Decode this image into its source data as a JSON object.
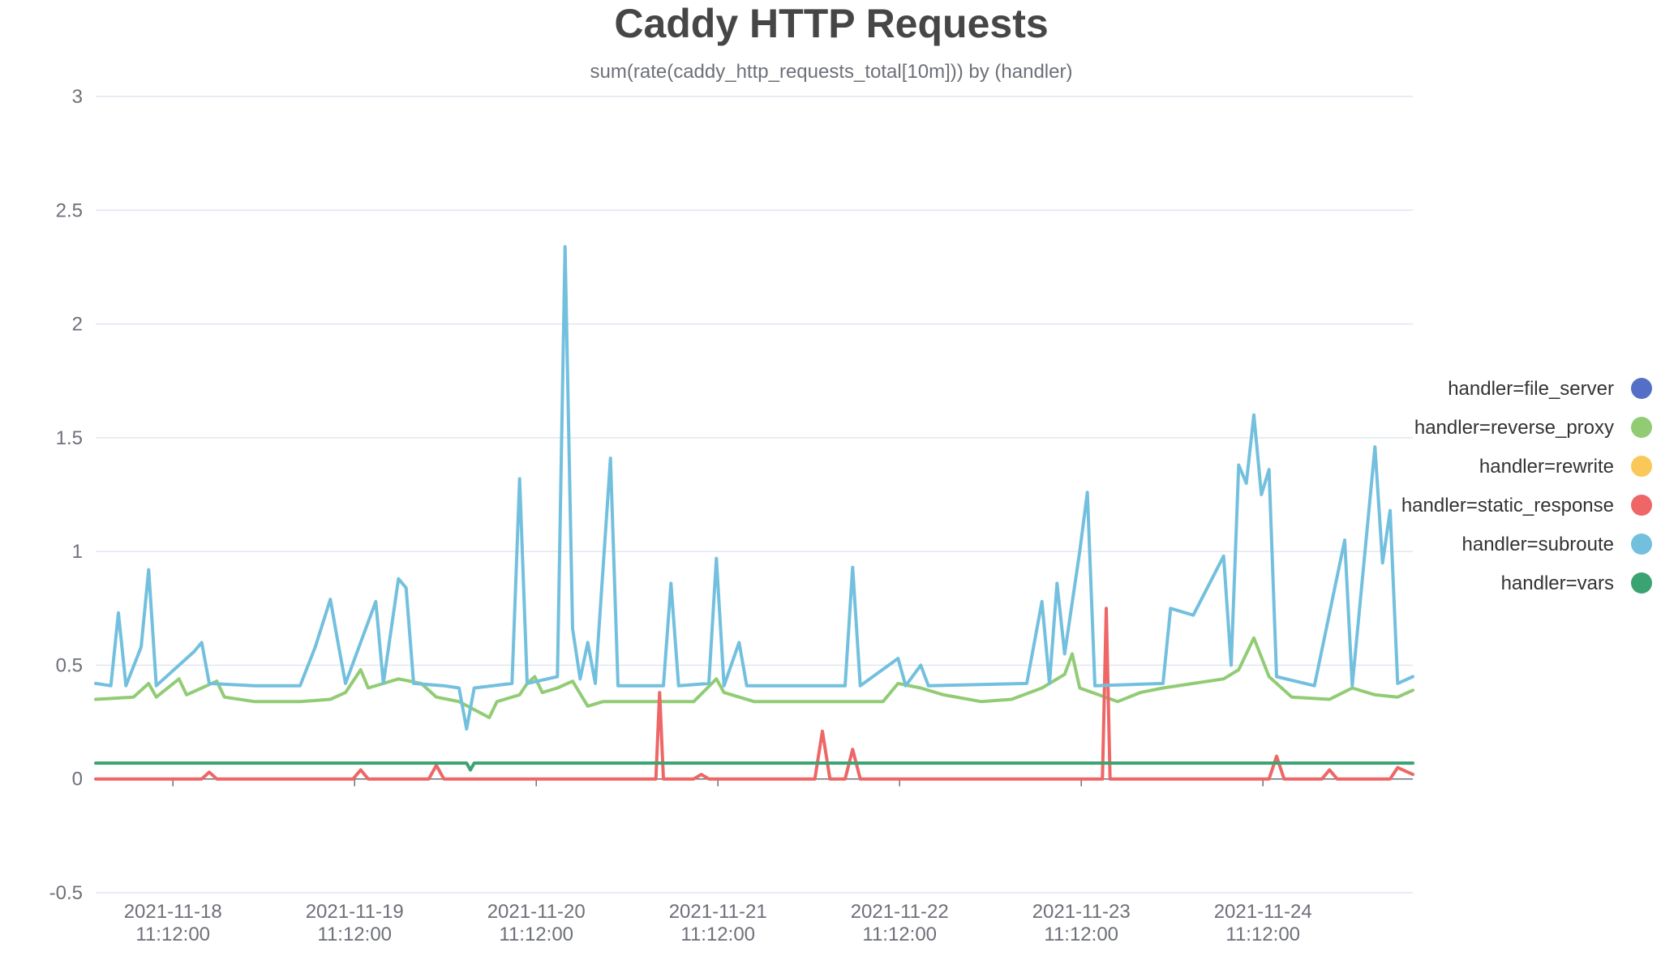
{
  "chart_data": {
    "type": "line",
    "title": "Caddy HTTP Requests",
    "subtitle": "sum(rate(caddy_http_requests_total[10m])) by (handler)",
    "xlabel": "",
    "ylabel": "",
    "ylim": [
      -0.5,
      3
    ],
    "yticks": [
      "3",
      "2.5",
      "2",
      "1.5",
      "1",
      "0.5",
      "0",
      "-0.5"
    ],
    "ytick_values": [
      3,
      2.5,
      2,
      1.5,
      1,
      0.5,
      0,
      -0.5
    ],
    "xlim": [
      "2021-11-18 01:00",
      "2021-11-25 07:00"
    ],
    "xticks": [
      {
        "date": "2021-11-18",
        "time": "11:12:00"
      },
      {
        "date": "2021-11-19",
        "time": "11:12:00"
      },
      {
        "date": "2021-11-20",
        "time": "11:12:00"
      },
      {
        "date": "2021-11-21",
        "time": "11:12:00"
      },
      {
        "date": "2021-11-22",
        "time": "11:12:00"
      },
      {
        "date": "2021-11-23",
        "time": "11:12:00"
      },
      {
        "date": "2021-11-24",
        "time": "11:12:00"
      }
    ],
    "grid": true,
    "legend_position": "right",
    "series": [
      {
        "name": "handler=file_server",
        "color": "#5470c6",
        "points": []
      },
      {
        "name": "handler=reverse_proxy",
        "color": "#91cc75",
        "points": [
          [
            "2021-11-18 01:00",
            0.35
          ],
          [
            "2021-11-18 06:00",
            0.36
          ],
          [
            "2021-11-18 08:00",
            0.42
          ],
          [
            "2021-11-18 09:00",
            0.36
          ],
          [
            "2021-11-18 12:00",
            0.44
          ],
          [
            "2021-11-18 13:00",
            0.37
          ],
          [
            "2021-11-18 15:00",
            0.4
          ],
          [
            "2021-11-18 17:00",
            0.43
          ],
          [
            "2021-11-18 18:00",
            0.36
          ],
          [
            "2021-11-18 22:00",
            0.34
          ],
          [
            "2021-11-19 04:00",
            0.34
          ],
          [
            "2021-11-19 08:00",
            0.35
          ],
          [
            "2021-11-19 10:00",
            0.38
          ],
          [
            "2021-11-19 11:00",
            0.43
          ],
          [
            "2021-11-19 12:00",
            0.48
          ],
          [
            "2021-11-19 13:00",
            0.4
          ],
          [
            "2021-11-19 17:00",
            0.44
          ],
          [
            "2021-11-19 20:00",
            0.42
          ],
          [
            "2021-11-19 22:00",
            0.36
          ],
          [
            "2021-11-20 01:00",
            0.34
          ],
          [
            "2021-11-20 05:00",
            0.27
          ],
          [
            "2021-11-20 06:00",
            0.34
          ],
          [
            "2021-11-20 09:00",
            0.37
          ],
          [
            "2021-11-20 10:00",
            0.42
          ],
          [
            "2021-11-20 11:00",
            0.45
          ],
          [
            "2021-11-20 12:00",
            0.38
          ],
          [
            "2021-11-20 14:00",
            0.4
          ],
          [
            "2021-11-20 16:00",
            0.43
          ],
          [
            "2021-11-20 18:00",
            0.32
          ],
          [
            "2021-11-20 20:00",
            0.34
          ],
          [
            "2021-11-21 03:00",
            0.34
          ],
          [
            "2021-11-21 08:00",
            0.34
          ],
          [
            "2021-11-21 11:00",
            0.44
          ],
          [
            "2021-11-21 12:00",
            0.38
          ],
          [
            "2021-11-21 16:00",
            0.34
          ],
          [
            "2021-11-22 00:00",
            0.34
          ],
          [
            "2021-11-22 09:00",
            0.34
          ],
          [
            "2021-11-22 11:00",
            0.42
          ],
          [
            "2021-11-22 14:00",
            0.4
          ],
          [
            "2021-11-22 17:00",
            0.37
          ],
          [
            "2021-11-22 22:00",
            0.34
          ],
          [
            "2021-11-23 02:00",
            0.35
          ],
          [
            "2021-11-23 06:00",
            0.4
          ],
          [
            "2021-11-23 09:00",
            0.46
          ],
          [
            "2021-11-23 10:00",
            0.55
          ],
          [
            "2021-11-23 11:00",
            0.4
          ],
          [
            "2021-11-23 16:00",
            0.34
          ],
          [
            "2021-11-23 19:00",
            0.38
          ],
          [
            "2021-11-23 22:00",
            0.4
          ],
          [
            "2021-11-24 02:00",
            0.42
          ],
          [
            "2021-11-24 06:00",
            0.44
          ],
          [
            "2021-11-24 08:00",
            0.48
          ],
          [
            "2021-11-24 10:00",
            0.62
          ],
          [
            "2021-11-24 12:00",
            0.45
          ],
          [
            "2021-11-24 15:00",
            0.36
          ],
          [
            "2021-11-24 20:00",
            0.35
          ],
          [
            "2021-11-24 23:00",
            0.4
          ],
          [
            "2021-11-25 02:00",
            0.37
          ],
          [
            "2021-11-25 05:00",
            0.36
          ],
          [
            "2021-11-25 07:00",
            0.39
          ]
        ]
      },
      {
        "name": "handler=rewrite",
        "color": "#fac858",
        "points": []
      },
      {
        "name": "handler=static_response",
        "color": "#ee6666",
        "points": [
          [
            "2021-11-18 01:00",
            0.0
          ],
          [
            "2021-11-18 15:00",
            0.0
          ],
          [
            "2021-11-18 16:00",
            0.03
          ],
          [
            "2021-11-18 17:00",
            0.0
          ],
          [
            "2021-11-18 22:00",
            0.0
          ],
          [
            "2021-11-19 11:00",
            0.0
          ],
          [
            "2021-11-19 12:00",
            0.04
          ],
          [
            "2021-11-19 13:00",
            0.0
          ],
          [
            "2021-11-19 21:00",
            0.0
          ],
          [
            "2021-11-19 22:00",
            0.06
          ],
          [
            "2021-11-19 23:00",
            0.0
          ],
          [
            "2021-11-20 12:00",
            0.0
          ],
          [
            "2021-11-20 18:00",
            0.0
          ],
          [
            "2021-11-21 03:00",
            0.0
          ],
          [
            "2021-11-21 03:30",
            0.38
          ],
          [
            "2021-11-21 04:00",
            0.0
          ],
          [
            "2021-11-21 08:00",
            0.0
          ],
          [
            "2021-11-21 09:00",
            0.02
          ],
          [
            "2021-11-21 10:00",
            0.0
          ],
          [
            "2021-11-22 00:00",
            0.0
          ],
          [
            "2021-11-22 01:00",
            0.21
          ],
          [
            "2021-11-22 02:00",
            0.0
          ],
          [
            "2021-11-22 04:00",
            0.0
          ],
          [
            "2021-11-22 05:00",
            0.13
          ],
          [
            "2021-11-22 06:00",
            0.0
          ],
          [
            "2021-11-22 18:00",
            0.0
          ],
          [
            "2021-11-23 06:00",
            0.0
          ],
          [
            "2021-11-23 14:00",
            0.0
          ],
          [
            "2021-11-23 14:30",
            0.75
          ],
          [
            "2021-11-23 15:00",
            0.0
          ],
          [
            "2021-11-24 06:00",
            0.0
          ],
          [
            "2021-11-24 12:00",
            0.0
          ],
          [
            "2021-11-24 13:00",
            0.1
          ],
          [
            "2021-11-24 14:00",
            0.0
          ],
          [
            "2021-11-24 19:00",
            0.0
          ],
          [
            "2021-11-24 20:00",
            0.04
          ],
          [
            "2021-11-24 21:00",
            0.0
          ],
          [
            "2021-11-25 04:00",
            0.0
          ],
          [
            "2021-11-25 05:00",
            0.05
          ],
          [
            "2021-11-25 07:00",
            0.02
          ]
        ]
      },
      {
        "name": "handler=subroute",
        "color": "#73c0de",
        "points": [
          [
            "2021-11-18 01:00",
            0.42
          ],
          [
            "2021-11-18 03:00",
            0.41
          ],
          [
            "2021-11-18 04:00",
            0.73
          ],
          [
            "2021-11-18 05:00",
            0.41
          ],
          [
            "2021-11-18 07:00",
            0.58
          ],
          [
            "2021-11-18 08:00",
            0.92
          ],
          [
            "2021-11-18 09:00",
            0.41
          ],
          [
            "2021-11-18 12:00",
            0.5
          ],
          [
            "2021-11-18 14:00",
            0.56
          ],
          [
            "2021-11-18 15:00",
            0.6
          ],
          [
            "2021-11-18 16:00",
            0.42
          ],
          [
            "2021-11-18 22:00",
            0.41
          ],
          [
            "2021-11-19 04:00",
            0.41
          ],
          [
            "2021-11-19 06:00",
            0.58
          ],
          [
            "2021-11-19 08:00",
            0.79
          ],
          [
            "2021-11-19 09:00",
            0.6
          ],
          [
            "2021-11-19 10:00",
            0.42
          ],
          [
            "2021-11-19 14:00",
            0.78
          ],
          [
            "2021-11-19 15:00",
            0.42
          ],
          [
            "2021-11-19 17:00",
            0.88
          ],
          [
            "2021-11-19 18:00",
            0.84
          ],
          [
            "2021-11-19 19:00",
            0.42
          ],
          [
            "2021-11-19 23:00",
            0.41
          ],
          [
            "2021-11-20 01:00",
            0.4
          ],
          [
            "2021-11-20 02:00",
            0.22
          ],
          [
            "2021-11-20 03:00",
            0.4
          ],
          [
            "2021-11-20 08:00",
            0.42
          ],
          [
            "2021-11-20 09:00",
            1.32
          ],
          [
            "2021-11-20 10:00",
            0.42
          ],
          [
            "2021-11-20 14:00",
            0.45
          ],
          [
            "2021-11-20 15:00",
            2.34
          ],
          [
            "2021-11-20 16:00",
            0.66
          ],
          [
            "2021-11-20 17:00",
            0.44
          ],
          [
            "2021-11-20 18:00",
            0.6
          ],
          [
            "2021-11-20 19:00",
            0.42
          ],
          [
            "2021-11-20 21:00",
            1.41
          ],
          [
            "2021-11-20 22:00",
            0.41
          ],
          [
            "2021-11-21 04:00",
            0.41
          ],
          [
            "2021-11-21 05:00",
            0.86
          ],
          [
            "2021-11-21 06:00",
            0.41
          ],
          [
            "2021-11-21 10:00",
            0.42
          ],
          [
            "2021-11-21 11:00",
            0.97
          ],
          [
            "2021-11-21 12:00",
            0.41
          ],
          [
            "2021-11-21 14:00",
            0.6
          ],
          [
            "2021-11-21 15:00",
            0.41
          ],
          [
            "2021-11-22 04:00",
            0.41
          ],
          [
            "2021-11-22 05:00",
            0.93
          ],
          [
            "2021-11-22 06:00",
            0.41
          ],
          [
            "2021-11-22 11:00",
            0.53
          ],
          [
            "2021-11-22 12:00",
            0.41
          ],
          [
            "2021-11-22 14:00",
            0.5
          ],
          [
            "2021-11-22 15:00",
            0.41
          ],
          [
            "2021-11-23 04:00",
            0.42
          ],
          [
            "2021-11-23 06:00",
            0.78
          ],
          [
            "2021-11-23 07:00",
            0.42
          ],
          [
            "2021-11-23 08:00",
            0.86
          ],
          [
            "2021-11-23 09:00",
            0.55
          ],
          [
            "2021-11-23 11:00",
            1.0
          ],
          [
            "2021-11-23 12:00",
            1.26
          ],
          [
            "2021-11-23 13:00",
            0.41
          ],
          [
            "2021-11-23 22:00",
            0.42
          ],
          [
            "2021-11-23 23:00",
            0.75
          ],
          [
            "2021-11-24 02:00",
            0.72
          ],
          [
            "2021-11-24 06:00",
            0.98
          ],
          [
            "2021-11-24 07:00",
            0.5
          ],
          [
            "2021-11-24 08:00",
            1.38
          ],
          [
            "2021-11-24 09:00",
            1.3
          ],
          [
            "2021-11-24 10:00",
            1.6
          ],
          [
            "2021-11-24 11:00",
            1.25
          ],
          [
            "2021-11-24 12:00",
            1.36
          ],
          [
            "2021-11-24 13:00",
            0.45
          ],
          [
            "2021-11-24 18:00",
            0.41
          ],
          [
            "2021-11-24 22:00",
            1.05
          ],
          [
            "2021-11-24 23:00",
            0.41
          ],
          [
            "2021-11-25 02:00",
            1.46
          ],
          [
            "2021-11-25 03:00",
            0.95
          ],
          [
            "2021-11-25 04:00",
            1.18
          ],
          [
            "2021-11-25 05:00",
            0.42
          ],
          [
            "2021-11-25 07:00",
            0.45
          ]
        ]
      },
      {
        "name": "handler=vars",
        "color": "#3ba272",
        "points": [
          [
            "2021-11-18 01:00",
            0.07
          ],
          [
            "2021-11-19 01:00",
            0.07
          ],
          [
            "2021-11-20 02:00",
            0.07
          ],
          [
            "2021-11-20 02:30",
            0.04
          ],
          [
            "2021-11-20 03:00",
            0.07
          ],
          [
            "2021-11-21 01:00",
            0.07
          ],
          [
            "2021-11-22 01:00",
            0.07
          ],
          [
            "2021-11-23 01:00",
            0.07
          ],
          [
            "2021-11-24 01:00",
            0.07
          ],
          [
            "2021-11-25 07:00",
            0.07
          ]
        ]
      }
    ]
  }
}
